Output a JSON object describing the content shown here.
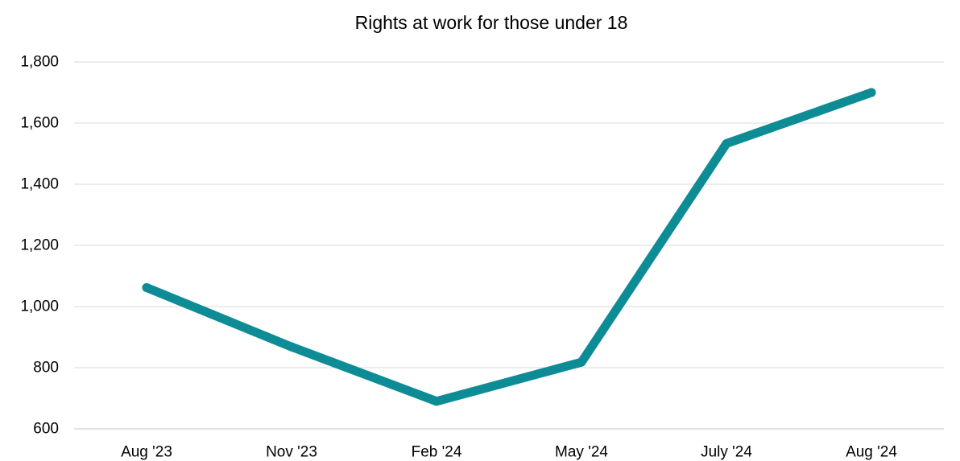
{
  "chart_data": {
    "type": "line",
    "title": "Rights at work for those under 18",
    "xlabel": "",
    "ylabel": "",
    "categories": [
      "Aug '23",
      "Nov '23",
      "Feb '24",
      "May '24",
      "July '24",
      "Aug '24"
    ],
    "series": [
      {
        "values": [
          1062,
          868,
          690,
          818,
          1533,
          1700
        ],
        "color": "#0E8C96"
      }
    ],
    "ylim": [
      600,
      1800
    ],
    "yticks": [
      600,
      800,
      1000,
      1200,
      1400,
      1600,
      1800
    ],
    "ytick_labels": [
      "600",
      "800",
      "1,000",
      "1,200",
      "1,400",
      "1,600",
      "1,800"
    ],
    "grid": true,
    "legend": "none",
    "colors": {
      "line": "#0E8C96",
      "grid": "#D9D9D9",
      "text": "#000000"
    }
  }
}
